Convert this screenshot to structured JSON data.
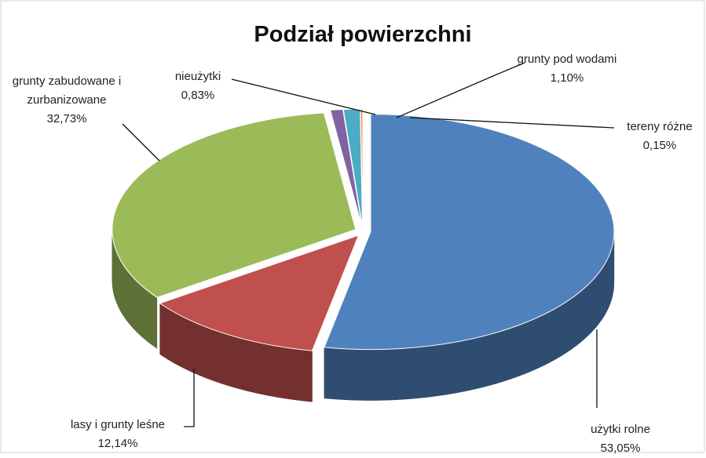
{
  "chart_data": {
    "type": "pie3d",
    "title": "Podział powierzchni",
    "categories": [
      "użytki rolne",
      "lasy i grunty leśne",
      "grunty zabudowane i zurbanizowane",
      "nieużytki",
      "grunty pod wodami",
      "tereny różne"
    ],
    "values": [
      53.05,
      12.14,
      32.73,
      0.83,
      1.1,
      0.15
    ],
    "value_labels": [
      "53,05%",
      "12,14%",
      "32,73%",
      "0,83%",
      "1,10%",
      "0,15%"
    ],
    "colors": [
      "#4f81bd",
      "#c0504d",
      "#9bbb59",
      "#8064a2",
      "#4bacc6",
      "#f79646"
    ]
  }
}
